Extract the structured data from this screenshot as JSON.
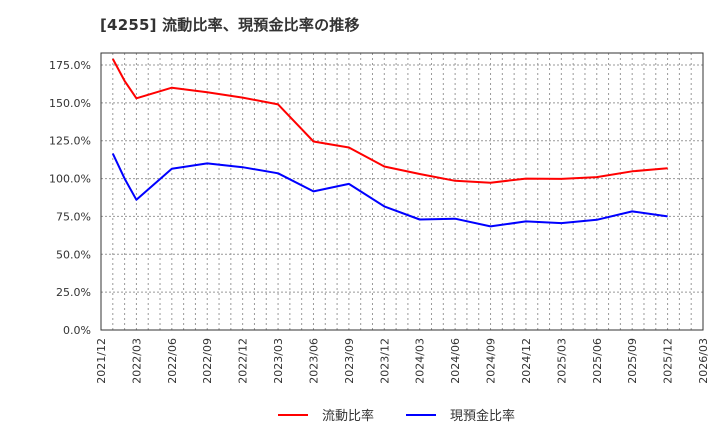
{
  "title": "[4255]  流動比率、現預金比率の推移",
  "colors": {
    "current_ratio": "#ff0000",
    "cash_ratio": "#0000ff",
    "grid": "#999999",
    "axis": "#333333"
  },
  "legend": [
    {
      "label": "流動比率",
      "color": "#ff0000"
    },
    {
      "label": "現預金比率",
      "color": "#0000ff"
    }
  ],
  "chart_data": {
    "type": "line",
    "title": "[4255]  流動比率、現預金比率の推移",
    "xlabel": "",
    "ylabel": "",
    "ylim": [
      0,
      182
    ],
    "yticks": [
      "0.0%",
      "25.0%",
      "50.0%",
      "75.0%",
      "100.0%",
      "125.0%",
      "150.0%",
      "175.0%"
    ],
    "ytick_values": [
      0,
      25,
      50,
      75,
      100,
      125,
      150,
      175
    ],
    "xticks": [
      "2021/12",
      "2022/03",
      "2022/06",
      "2022/09",
      "2022/12",
      "2023/03",
      "2023/06",
      "2023/09",
      "2023/12",
      "2024/03",
      "2024/06",
      "2024/09",
      "2024/12",
      "2025/03",
      "2025/06",
      "2025/09",
      "2025/12",
      "2026/03"
    ],
    "grid": true,
    "legend_position": "bottom",
    "x": [
      "2022/01",
      "2022/02",
      "2022/03",
      "2022/06",
      "2022/09",
      "2022/12",
      "2023/03",
      "2023/06",
      "2023/09",
      "2023/12",
      "2024/03",
      "2024/06",
      "2024/09",
      "2024/12",
      "2025/03",
      "2025/06",
      "2025/09",
      "2025/12"
    ],
    "series": [
      {
        "name": "流動比率",
        "color": "#ff0000",
        "values": [
          179,
          164.5,
          153,
          160,
          157,
          153.5,
          149,
          124.5,
          120.5,
          108,
          103,
          98.5,
          97.3,
          100,
          99.8,
          101,
          104.8,
          106.8
        ]
      },
      {
        "name": "現預金比率",
        "color": "#0000ff",
        "values": [
          116.5,
          100,
          86,
          106.5,
          110,
          107.5,
          103.5,
          91.5,
          96.5,
          81.6,
          73,
          73.5,
          68.4,
          71.7,
          70.6,
          72.8,
          78.3,
          75
        ]
      }
    ]
  }
}
